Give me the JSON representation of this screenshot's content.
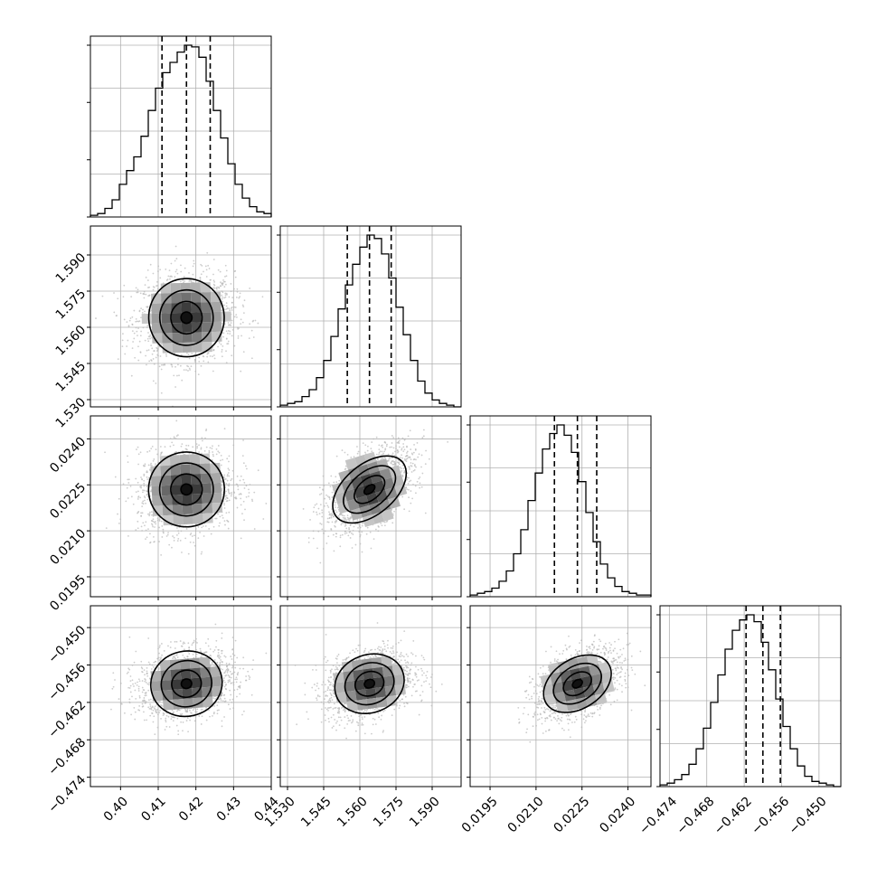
{
  "chart_data": {
    "type": "corner",
    "parameters": [
      {
        "range": [
          0.392,
          0.44
        ],
        "ticks": [
          "0.40",
          "0.41",
          "0.42",
          "0.43",
          "0.44"
        ],
        "quantiles": [
          0.411,
          0.4175,
          0.4238
        ],
        "hist_rel": [
          0.01,
          0.02,
          0.05,
          0.1,
          0.19,
          0.27,
          0.35,
          0.47,
          0.62,
          0.75,
          0.84,
          0.9,
          0.96,
          1.0,
          0.99,
          0.93,
          0.79,
          0.62,
          0.46,
          0.31,
          0.19,
          0.11,
          0.06,
          0.03,
          0.02
        ]
      },
      {
        "range": [
          1.527,
          1.602
        ],
        "ticks": [
          "1.530",
          "1.545",
          "1.560",
          "1.575",
          "1.590"
        ],
        "quantiles": [
          1.5548,
          1.564,
          1.573
        ],
        "hist_rel": [
          0.01,
          0.02,
          0.03,
          0.06,
          0.1,
          0.17,
          0.27,
          0.41,
          0.57,
          0.71,
          0.83,
          0.93,
          1.0,
          0.98,
          0.89,
          0.75,
          0.58,
          0.42,
          0.27,
          0.15,
          0.08,
          0.04,
          0.02,
          0.01,
          0.0
        ]
      },
      {
        "range": [
          0.01885,
          0.02475
        ],
        "ticks": [
          "0.0195",
          "0.0210",
          "0.0225",
          "0.0240"
        ],
        "quantiles": [
          0.0216,
          0.02235,
          0.02298
        ],
        "hist_rel": [
          0.01,
          0.02,
          0.03,
          0.05,
          0.09,
          0.15,
          0.25,
          0.39,
          0.56,
          0.72,
          0.86,
          0.95,
          1.0,
          0.94,
          0.84,
          0.67,
          0.49,
          0.32,
          0.19,
          0.11,
          0.06,
          0.03,
          0.02,
          0.01,
          0.01
        ]
      },
      {
        "range": [
          -0.4755,
          -0.4465
        ],
        "ticks": [
          "−0.474",
          "−0.468",
          "−0.462",
          "−0.456",
          "−0.450"
        ],
        "quantiles": [
          -0.4617,
          -0.459,
          -0.4562
        ],
        "hist_rel": [
          0.01,
          0.02,
          0.04,
          0.07,
          0.13,
          0.22,
          0.34,
          0.49,
          0.65,
          0.8,
          0.91,
          0.97,
          1.0,
          0.96,
          0.84,
          0.68,
          0.51,
          0.35,
          0.22,
          0.12,
          0.06,
          0.03,
          0.02,
          0.01,
          0.0
        ]
      }
    ],
    "correlations": {
      "1-0": 0.05,
      "2-0": 0.1,
      "2-1": 0.55,
      "3-0": 0.18,
      "3-1": 0.28,
      "3-2": 0.45
    },
    "title": "",
    "xlabel": "",
    "ylabel": "",
    "grid": true,
    "colors": {
      "hist": "#000000",
      "scatter": "#b8b8b8",
      "density": "#000000",
      "grid": "#b0b0b0"
    }
  }
}
